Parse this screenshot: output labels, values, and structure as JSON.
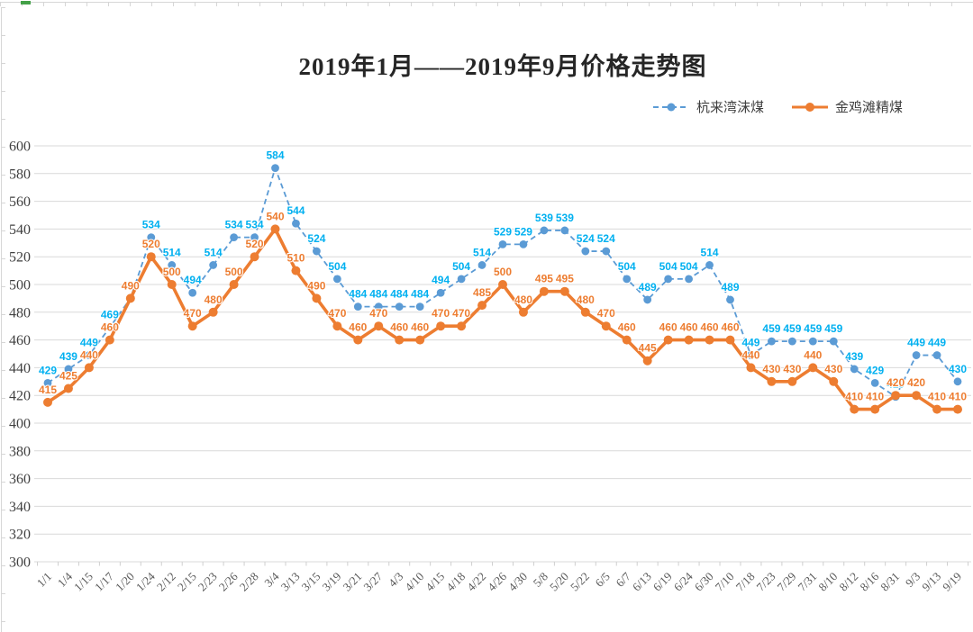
{
  "sheet": {
    "edge_color": "#d6d6d6",
    "green_mark_color": "#43a047"
  },
  "chart_data": {
    "type": "line",
    "title": "2019年1月——2019年9月价格走势图",
    "xlabel": "",
    "ylabel": "",
    "ylim": [
      300,
      600
    ],
    "ytick_step": 20,
    "y_ticks": [
      600,
      580,
      560,
      540,
      520,
      500,
      480,
      460,
      440,
      420,
      400,
      380,
      360,
      340,
      320,
      300
    ],
    "grid": true,
    "legend_position": "top-right",
    "grid_color": "#d9d9d9",
    "axis_tick_color": "#cfcfcf",
    "y_label_color": "#404040",
    "x_label_color": "#595959",
    "categories": [
      "1/1",
      "1/4",
      "1/15",
      "1/17",
      "1/20",
      "1/24",
      "2/12",
      "2/15",
      "2/23",
      "2/26",
      "2/28",
      "3/4",
      "3/13",
      "3/15",
      "3/19",
      "3/21",
      "3/27",
      "4/3",
      "4/10",
      "4/15",
      "4/18",
      "4/22",
      "4/26",
      "4/30",
      "5/8",
      "5/20",
      "5/22",
      "6/5",
      "6/7",
      "6/13",
      "6/19",
      "6/24",
      "6/30",
      "7/10",
      "7/18",
      "7/23",
      "7/29",
      "7/31",
      "8/10",
      "8/12",
      "8/16",
      "8/31",
      "9/3",
      "9/13",
      "9/19"
    ],
    "series": [
      {
        "name": "杭来湾沫煤",
        "line_color": "#5B9BD5",
        "label_color": "#00B0F0",
        "line_style": "dashed",
        "values": [
          429,
          439,
          449,
          469,
          490,
          534,
          514,
          494,
          514,
          534,
          534,
          584,
          544,
          524,
          504,
          484,
          484,
          484,
          484,
          494,
          504,
          514,
          529,
          529,
          539,
          539,
          524,
          524,
          504,
          489,
          504,
          504,
          514,
          489,
          449,
          459,
          459,
          459,
          459,
          439,
          429,
          419,
          449,
          449,
          430
        ]
      },
      {
        "name": "金鸡滩精煤",
        "line_color": "#ED7D31",
        "label_color": "#ED7D31",
        "line_style": "solid",
        "values": [
          415,
          425,
          440,
          460,
          490,
          520,
          500,
          470,
          480,
          500,
          520,
          540,
          510,
          490,
          470,
          460,
          470,
          460,
          460,
          470,
          470,
          485,
          500,
          480,
          495,
          495,
          480,
          470,
          460,
          445,
          460,
          460,
          460,
          460,
          440,
          430,
          430,
          440,
          430,
          410,
          410,
          420,
          420,
          410,
          410
        ]
      }
    ]
  }
}
